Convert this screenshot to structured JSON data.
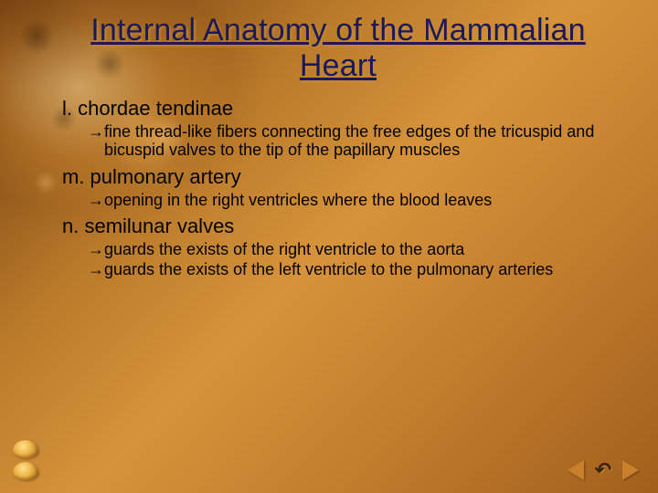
{
  "title": "Internal Anatomy of the Mammalian Heart",
  "colors": {
    "title_color": "#1a1a5a",
    "body_text": "#000000",
    "nav_triangle": "#c97f2c",
    "uturn": "#3a2408",
    "bg_gradient_stops": [
      "#6b3a0e",
      "#8a5218",
      "#b97a2a",
      "#d6933a",
      "#c47f2e",
      "#a15f1c"
    ]
  },
  "typography": {
    "title_fontsize_pt": 26,
    "item_head_fontsize_pt": 17,
    "sub_fontsize_pt": 14,
    "font_family": "Arial"
  },
  "bullet_glyph": "→",
  "items": [
    {
      "head": "l. chordae tendinae",
      "subs": [
        "fine thread-like fibers connecting the free edges of the tricuspid and bicuspid valves to the tip of the papillary muscles"
      ]
    },
    {
      "head": "m. pulmonary artery",
      "subs": [
        "opening in the right ventricles where the blood leaves"
      ]
    },
    {
      "head": "n. semilunar valves",
      "subs": [
        "guards the exists of the right ventricle to the aorta",
        "guards the exists of the left ventricle to the pulmonary arteries"
      ]
    }
  ],
  "nav": {
    "prev": "Previous",
    "return": "Return",
    "next": "Next"
  }
}
